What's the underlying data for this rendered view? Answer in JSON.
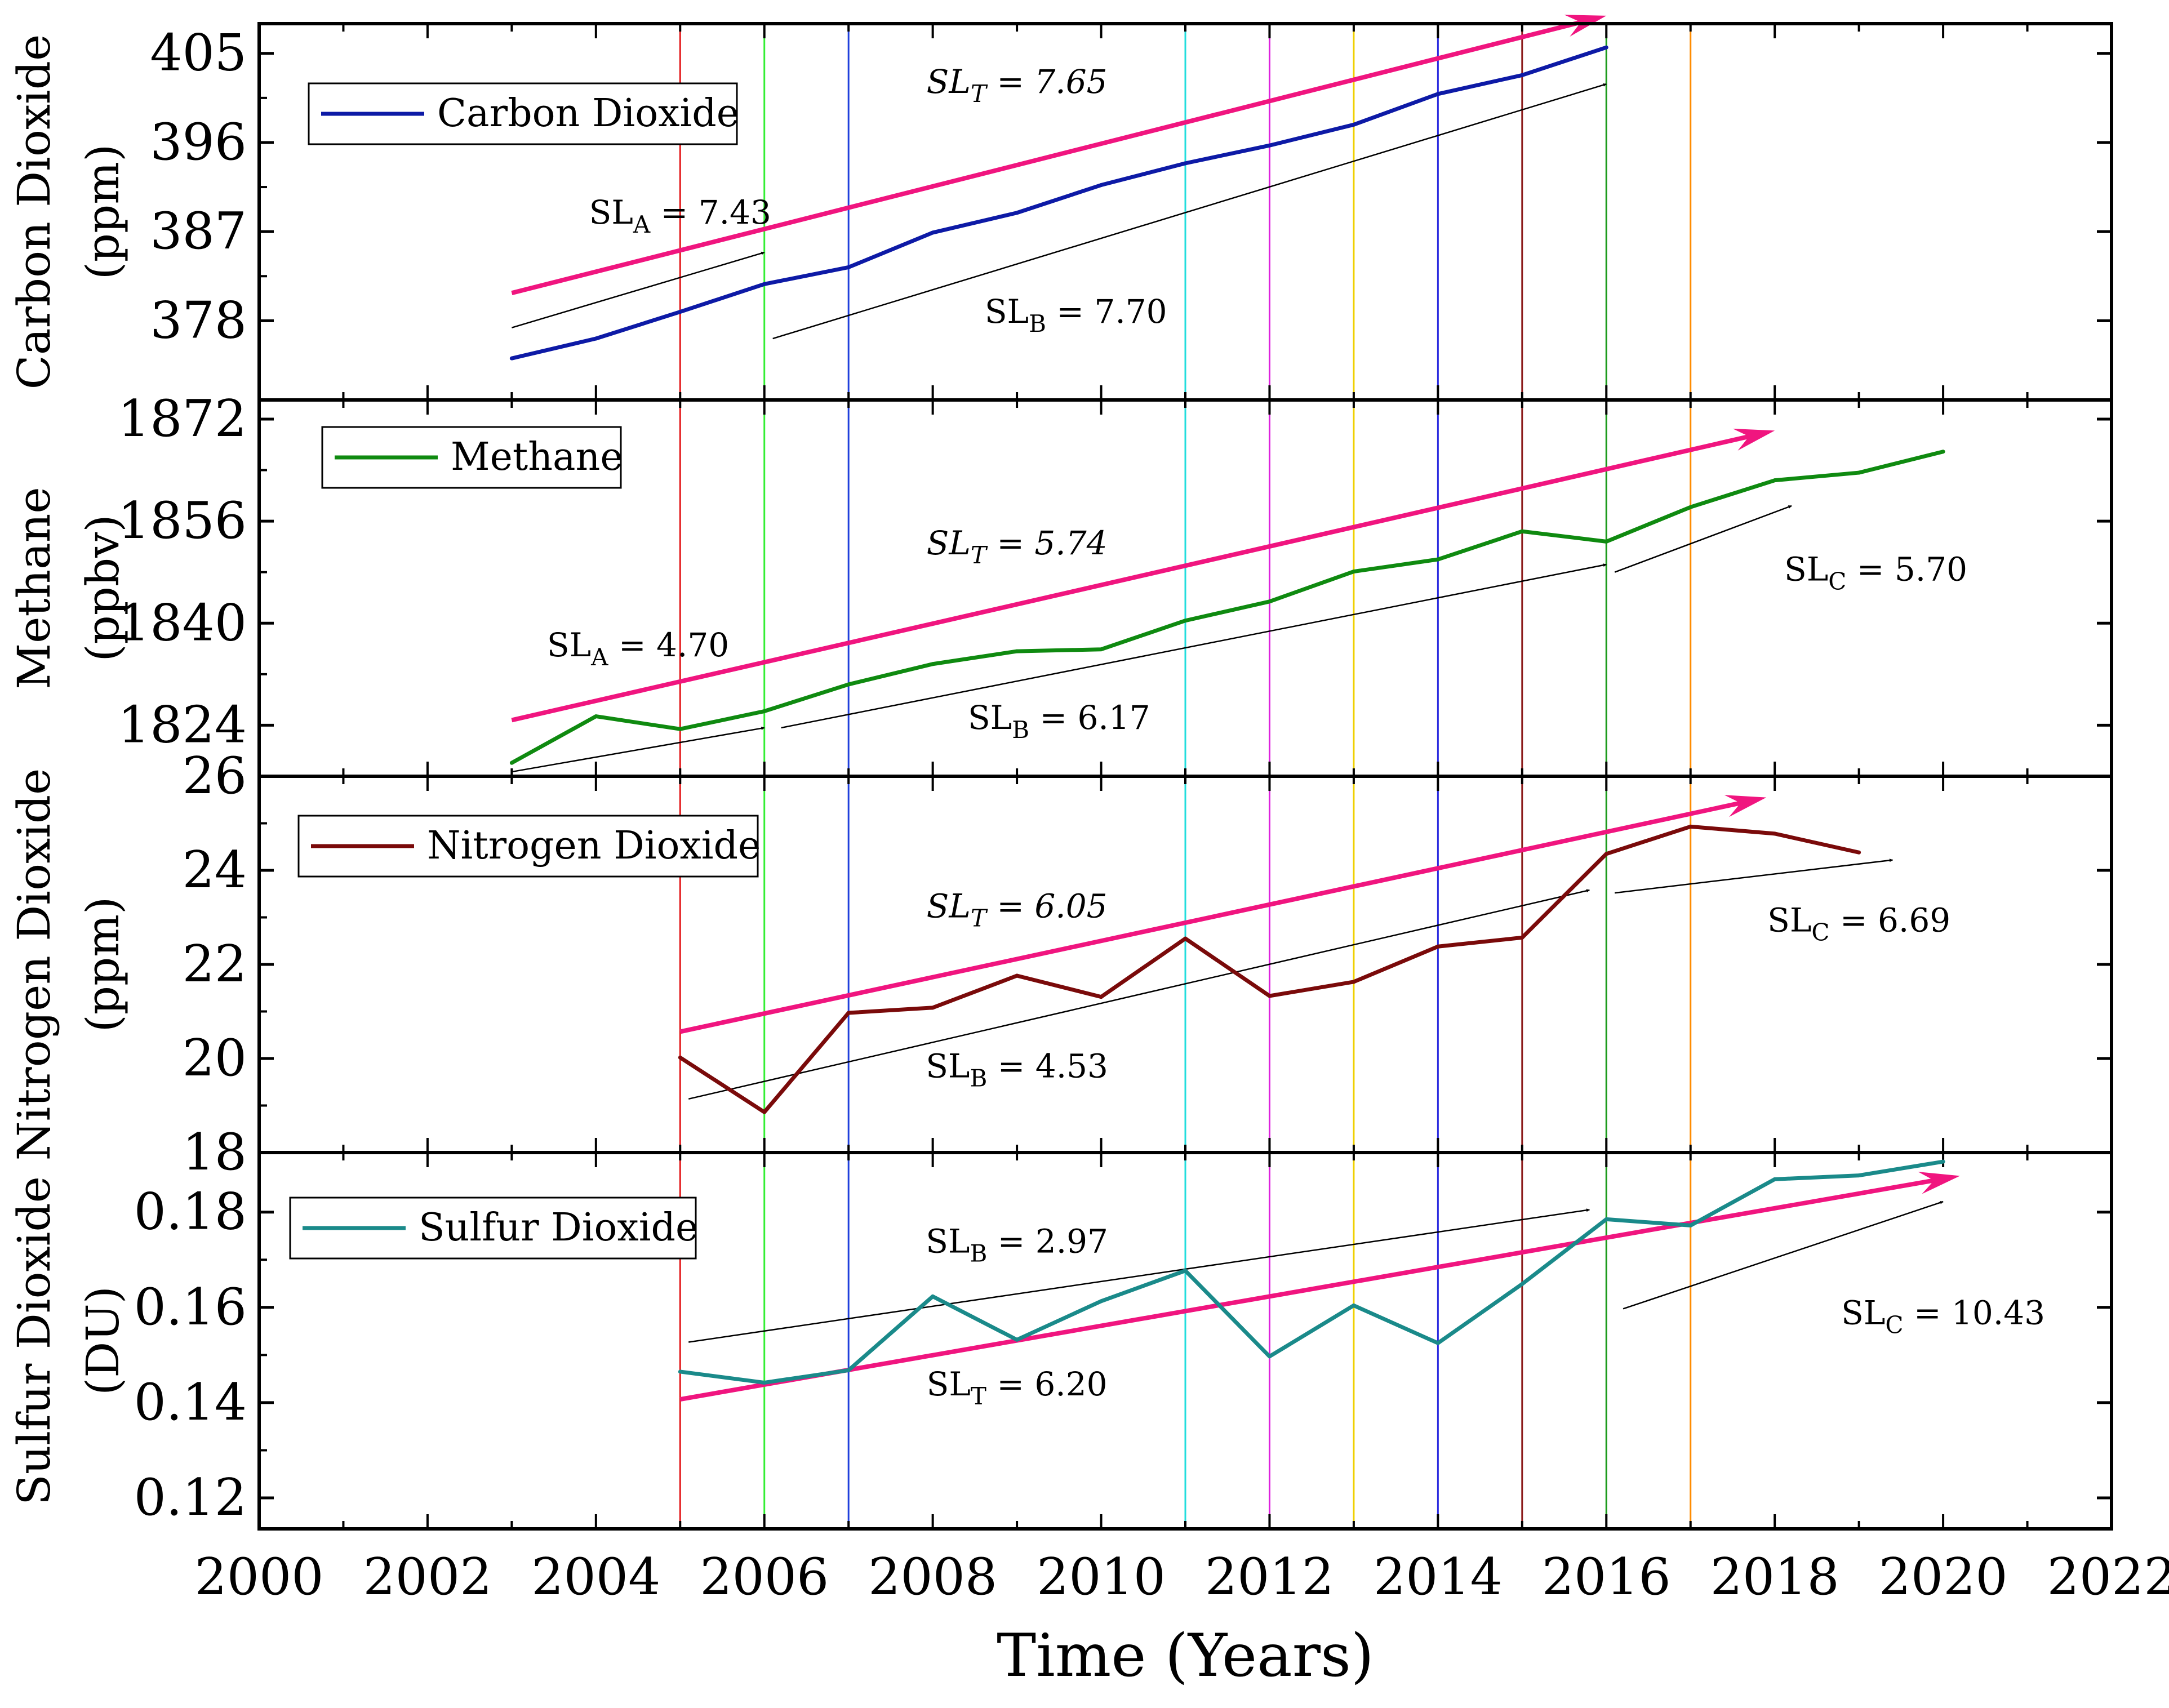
{
  "chart_data": {
    "type": "line",
    "xlabel": "Time (Years)",
    "xlim": [
      2000,
      2022
    ],
    "xticks": [
      2000,
      2002,
      2004,
      2006,
      2008,
      2010,
      2012,
      2014,
      2016,
      2018,
      2020,
      2022
    ],
    "vlines": [
      {
        "x": 2005,
        "color": "#e31a1c"
      },
      {
        "x": 2006,
        "color": "#33ee33"
      },
      {
        "x": 2007,
        "color": "#1f3fdc"
      },
      {
        "x": 2011,
        "color": "#22dddd"
      },
      {
        "x": 2012,
        "color": "#dd22dd"
      },
      {
        "x": 2013,
        "color": "#f0d000"
      },
      {
        "x": 2014,
        "color": "#2a2adf"
      },
      {
        "x": 2015,
        "color": "#8b1a1a"
      },
      {
        "x": 2016,
        "color": "#1a9a1a"
      },
      {
        "x": 2017,
        "color": "#ff8c00"
      }
    ],
    "panels": [
      {
        "ylabel_line1": "Carbon Dioxide",
        "ylabel_line2": "(ppm)",
        "ylim": [
          370,
          408
        ],
        "yticks": [
          378,
          387,
          396,
          405
        ],
        "series": {
          "name": "Carbon Dioxide",
          "color": "#0d1aa6",
          "x": [
            2003,
            2004,
            2005,
            2006,
            2007,
            2008,
            2009,
            2010,
            2011,
            2012,
            2013,
            2014,
            2015,
            2016
          ],
          "y": [
            374.2,
            376.2,
            378.9,
            381.7,
            383.4,
            386.9,
            388.9,
            391.7,
            393.9,
            395.7,
            397.8,
            400.9,
            402.8,
            405.6
          ]
        },
        "trend": {
          "name": "SL_T",
          "value": "7.65",
          "x1": 2003,
          "y1": 380.8,
          "x2": 2016,
          "y2": 408.8,
          "color": "#f0157f"
        },
        "guides": [
          {
            "x1": 2003,
            "y1": 377.3,
            "x2": 2006,
            "y2": 384.9
          },
          {
            "x1": 2006.1,
            "y1": 376.2,
            "x2": 2016,
            "y2": 401.9
          }
        ],
        "annotations": [
          {
            "base": "SL",
            "sub": "T",
            "value": "= 7.65",
            "italic": true,
            "x": 2009,
            "y": 401
          },
          {
            "base": "SL",
            "sub": "A",
            "value": "= 7.43",
            "italic": false,
            "x": 2005,
            "y": 387.8
          },
          {
            "base": "SL",
            "sub": "B",
            "value": "= 7.70",
            "italic": false,
            "x": 2009.7,
            "y": 377.8
          }
        ],
        "legend": "Carbon Dioxide"
      },
      {
        "ylabel_line1": "Methane",
        "ylabel_line2": "(ppbv)",
        "ylim": [
          1816,
          1875
        ],
        "yticks": [
          1824,
          1840,
          1856,
          1872
        ],
        "series": {
          "name": "Methane",
          "color": "#0f8a10",
          "x": [
            2003,
            2004,
            2005,
            2006,
            2007,
            2008,
            2009,
            2010,
            2011,
            2012,
            2013,
            2014,
            2015,
            2016,
            2017,
            2018,
            2019,
            2020
          ],
          "y": [
            1818.1,
            1825.4,
            1823.4,
            1826.2,
            1830.4,
            1833.6,
            1835.6,
            1835.9,
            1840.4,
            1843.4,
            1848.1,
            1850.0,
            1854.4,
            1852.8,
            1858.2,
            1862.4,
            1863.6,
            1866.9
          ]
        },
        "trend": {
          "name": "SL_T",
          "value": "5.74",
          "x1": 2003,
          "y1": 1824.8,
          "x2": 2018,
          "y2": 1870.2,
          "color": "#f0157f"
        },
        "guides": [
          {
            "x1": 2003,
            "y1": 1816.7,
            "x2": 2006,
            "y2": 1823.6
          },
          {
            "x1": 2006.2,
            "y1": 1823.6,
            "x2": 2016,
            "y2": 1849.2
          },
          {
            "x1": 2016.1,
            "y1": 1848.0,
            "x2": 2018.2,
            "y2": 1858.4
          }
        ],
        "annotations": [
          {
            "base": "SL",
            "sub": "T",
            "value": "= 5.74",
            "italic": true,
            "x": 2009,
            "y": 1850.8
          },
          {
            "base": "SL",
            "sub": "A",
            "value": "= 4.70",
            "italic": false,
            "x": 2004.5,
            "y": 1834.8
          },
          {
            "base": "SL",
            "sub": "B",
            "value": "= 6.17",
            "italic": false,
            "x": 2009.5,
            "y": 1823.4
          },
          {
            "base": "SL",
            "sub": "C",
            "value": "= 5.70",
            "italic": false,
            "x": 2019.2,
            "y": 1846.7
          }
        ],
        "legend": "Methane"
      },
      {
        "ylabel_line1": "Nitrogen Dioxide",
        "ylabel_line2": "(ppm)",
        "ylim": [
          18,
          26
        ],
        "yticks": [
          18,
          20,
          22,
          24,
          26
        ],
        "series": {
          "name": "Nitrogen Dioxide",
          "color": "#7a0a0a",
          "x": [
            2005,
            2006,
            2007,
            2008,
            2009,
            2010,
            2011,
            2012,
            2013,
            2014,
            2015,
            2016,
            2017,
            2018,
            2019
          ],
          "y": [
            20.02,
            18.86,
            20.97,
            21.08,
            21.76,
            21.31,
            22.55,
            21.33,
            21.63,
            22.38,
            22.57,
            24.35,
            24.93,
            24.78,
            24.38
          ]
        },
        "trend": {
          "name": "SL_T",
          "value": "6.05",
          "x1": 2005,
          "y1": 20.57,
          "x2": 2017.9,
          "y2": 25.55,
          "color": "#f0157f"
        },
        "guides": [
          {
            "x1": 2005.1,
            "y1": 19.14,
            "x2": 2015.8,
            "y2": 23.58
          },
          {
            "x1": 2016.1,
            "y1": 23.52,
            "x2": 2019.4,
            "y2": 24.22
          }
        ],
        "annotations": [
          {
            "base": "SL",
            "sub": "T",
            "value": "= 6.05",
            "italic": true,
            "x": 2009,
            "y": 23.0
          },
          {
            "base": "SL",
            "sub": "B",
            "value": "= 4.53",
            "italic": false,
            "x": 2009,
            "y": 19.6
          },
          {
            "base": "SL",
            "sub": "C",
            "value": "= 6.69",
            "italic": false,
            "x": 2019,
            "y": 22.7
          }
        ],
        "legend": "Nitrogen Dioxide"
      },
      {
        "ylabel_line1": "Sulfur Dioxide",
        "ylabel_line2": "(DU)",
        "ylim": [
          0.1135,
          0.1925
        ],
        "yticks": [
          0.12,
          0.14,
          0.16,
          0.18
        ],
        "series": {
          "name": "Sulfur Dioxide",
          "color": "#1a8a8a",
          "x": [
            2005,
            2006,
            2007,
            2008,
            2009,
            2010,
            2011,
            2012,
            2013,
            2014,
            2015,
            2016,
            2017,
            2018,
            2019,
            2020
          ],
          "y": [
            0.1465,
            0.1442,
            0.1468,
            0.1623,
            0.1532,
            0.1613,
            0.1677,
            0.1497,
            0.1604,
            0.1525,
            0.1649,
            0.1785,
            0.1772,
            0.1869,
            0.1877,
            0.1906
          ]
        },
        "trend": {
          "name": "SL_T",
          "value": "6.20",
          "x1": 2005,
          "y1": 0.1407,
          "x2": 2020.2,
          "y2": 0.1876,
          "color": "#f0157f"
        },
        "guides": [
          {
            "x1": 2005.1,
            "y1": 0.1527,
            "x2": 2015.8,
            "y2": 0.1805
          },
          {
            "x1": 2016.2,
            "y1": 0.1597,
            "x2": 2020,
            "y2": 0.1822
          }
        ],
        "annotations": [
          {
            "base": "SL",
            "sub": "B",
            "value": "= 2.97",
            "italic": false,
            "x": 2009,
            "y": 0.1715
          },
          {
            "base": "SL",
            "sub": "T",
            "value": "= 6.20",
            "italic": false,
            "x": 2009,
            "y": 0.1415
          },
          {
            "base": "SL",
            "sub": "C",
            "value": "= 10.43",
            "italic": false,
            "x": 2020,
            "y": 0.1565
          }
        ],
        "legend": "Sulfur Dioxide"
      }
    ]
  }
}
